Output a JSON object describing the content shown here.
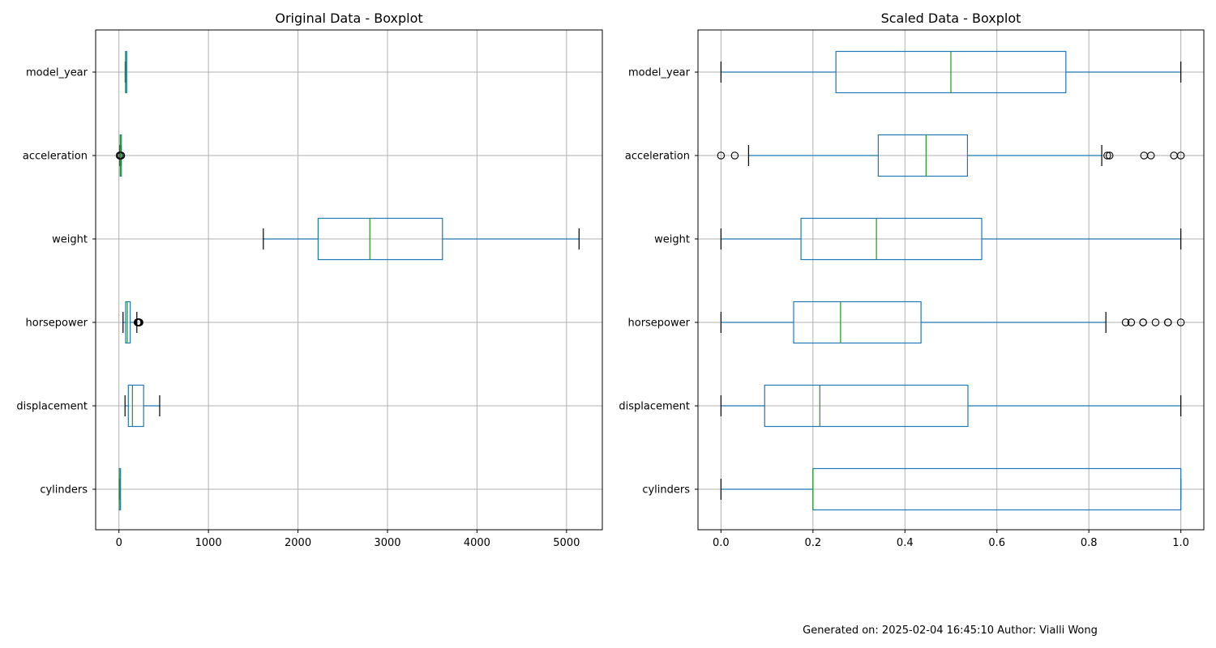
{
  "chart_data": [
    {
      "type": "boxplot",
      "title": "Original Data - Boxplot",
      "orientation": "horizontal",
      "xlim": [
        -260,
        5400
      ],
      "xticks": [
        0,
        1000,
        2000,
        3000,
        4000,
        5000
      ],
      "xtick_labels": [
        "0",
        "1000",
        "2000",
        "3000",
        "4000",
        "5000"
      ],
      "grid": true,
      "categories": [
        "cylinders",
        "displacement",
        "horsepower",
        "weight",
        "acceleration",
        "model_year"
      ],
      "series": [
        {
          "category": "cylinders",
          "whisker_low": 3,
          "q1": 4,
          "median": 4,
          "q3": 8,
          "whisker_high": 8,
          "outliers": []
        },
        {
          "category": "displacement",
          "whisker_low": 68,
          "q1": 105,
          "median": 151,
          "q3": 275.8,
          "whisker_high": 455,
          "outliers": []
        },
        {
          "category": "horsepower",
          "whisker_low": 46,
          "q1": 75,
          "median": 93.5,
          "q3": 126,
          "whisker_high": 200,
          "outliers": [
            208,
            210,
            215,
            215,
            220,
            225,
            225,
            225,
            230
          ]
        },
        {
          "category": "weight",
          "whisker_low": 1613,
          "q1": 2225,
          "median": 2803,
          "q3": 3614,
          "whisker_high": 5140,
          "outliers": []
        },
        {
          "category": "acceleration",
          "whisker_low": 9.5,
          "q1": 13.8,
          "median": 15.5,
          "q3": 17.2,
          "whisker_high": 22.2,
          "outliers": [
            8,
            8.5,
            22.8,
            23.5,
            24.6,
            24.8
          ]
        },
        {
          "category": "model_year",
          "whisker_low": 70,
          "q1": 73,
          "median": 76,
          "q3": 79,
          "whisker_high": 82,
          "outliers": []
        }
      ]
    },
    {
      "type": "boxplot",
      "title": "Scaled Data - Boxplot",
      "orientation": "horizontal",
      "xlim": [
        -0.05,
        1.05
      ],
      "xticks": [
        0,
        0.2,
        0.4,
        0.6,
        0.8,
        1
      ],
      "xtick_labels": [
        "0.0",
        "0.2",
        "0.4",
        "0.6",
        "0.8",
        "1.0"
      ],
      "grid": true,
      "categories": [
        "cylinders",
        "displacement",
        "horsepower",
        "weight",
        "acceleration",
        "model_year"
      ],
      "series": [
        {
          "category": "cylinders",
          "whisker_low": 0,
          "q1": 0.2,
          "median": 0.2,
          "q3": 1,
          "whisker_high": 1,
          "outliers": []
        },
        {
          "category": "displacement",
          "whisker_low": 0,
          "q1": 0.095,
          "median": 0.215,
          "q3": 0.537,
          "whisker_high": 1,
          "outliers": []
        },
        {
          "category": "horsepower",
          "whisker_low": 0,
          "q1": 0.158,
          "median": 0.26,
          "q3": 0.435,
          "whisker_high": 0.837,
          "outliers": [
            0.88,
            0.892,
            0.918,
            0.918,
            0.945,
            0.972,
            0.972,
            1
          ]
        },
        {
          "category": "weight",
          "whisker_low": 0,
          "q1": 0.174,
          "median": 0.338,
          "q3": 0.567,
          "whisker_high": 1,
          "outliers": []
        },
        {
          "category": "acceleration",
          "whisker_low": 0.06,
          "q1": 0.342,
          "median": 0.446,
          "q3": 0.536,
          "whisker_high": 0.828,
          "outliers": [
            0,
            0.03,
            0.84,
            0.845,
            0.92,
            0.935,
            0.985,
            1
          ]
        },
        {
          "category": "model_year",
          "whisker_low": 0,
          "q1": 0.25,
          "median": 0.5,
          "q3": 0.75,
          "whisker_high": 1,
          "outliers": []
        }
      ]
    }
  ],
  "footer": {
    "text": "Generated on: 2025-02-04 16:45:10 Author: Vialli Wong"
  },
  "colors": {
    "box": "#1f77b4",
    "median": "#2ca02c",
    "grid": "#b0b0b0",
    "axis": "#000000",
    "outlier": "#000000"
  }
}
